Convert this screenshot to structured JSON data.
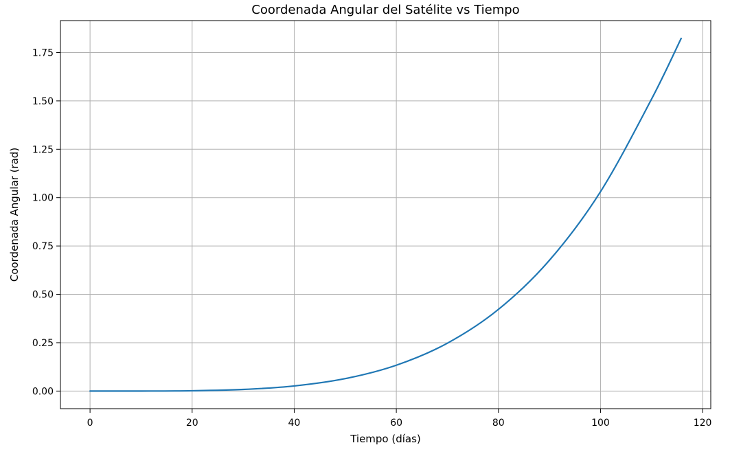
{
  "chart_data": {
    "type": "line",
    "title": "Coordenada Angular del Satélite vs Tiempo",
    "xlabel": "Tiempo (días)",
    "ylabel": "Coordenada Angular (rad)",
    "xlim": [
      -5.8,
      121.6
    ],
    "ylim": [
      -0.091,
      1.915
    ],
    "xticks": [
      0,
      20,
      40,
      60,
      80,
      100,
      120
    ],
    "xtick_labels": [
      "0",
      "20",
      "40",
      "60",
      "80",
      "100",
      "120"
    ],
    "yticks": [
      0,
      0.25,
      0.5,
      0.75,
      1.0,
      1.25,
      1.5,
      1.75
    ],
    "ytick_labels": [
      "0.00",
      "0.25",
      "0.50",
      "0.75",
      "1.00",
      "1.25",
      "1.50",
      "1.75"
    ],
    "grid": true,
    "series": [
      {
        "color": "#1f77b4",
        "x": [
          0,
          10,
          20,
          30,
          40,
          50,
          60,
          70,
          80,
          90,
          100,
          110,
          115.8
        ],
        "y": [
          0.0,
          0.0001,
          0.0016,
          0.0083,
          0.0264,
          0.0644,
          0.1336,
          0.2475,
          0.4222,
          0.6763,
          1.0308,
          1.5092,
          1.8232
        ]
      }
    ]
  }
}
